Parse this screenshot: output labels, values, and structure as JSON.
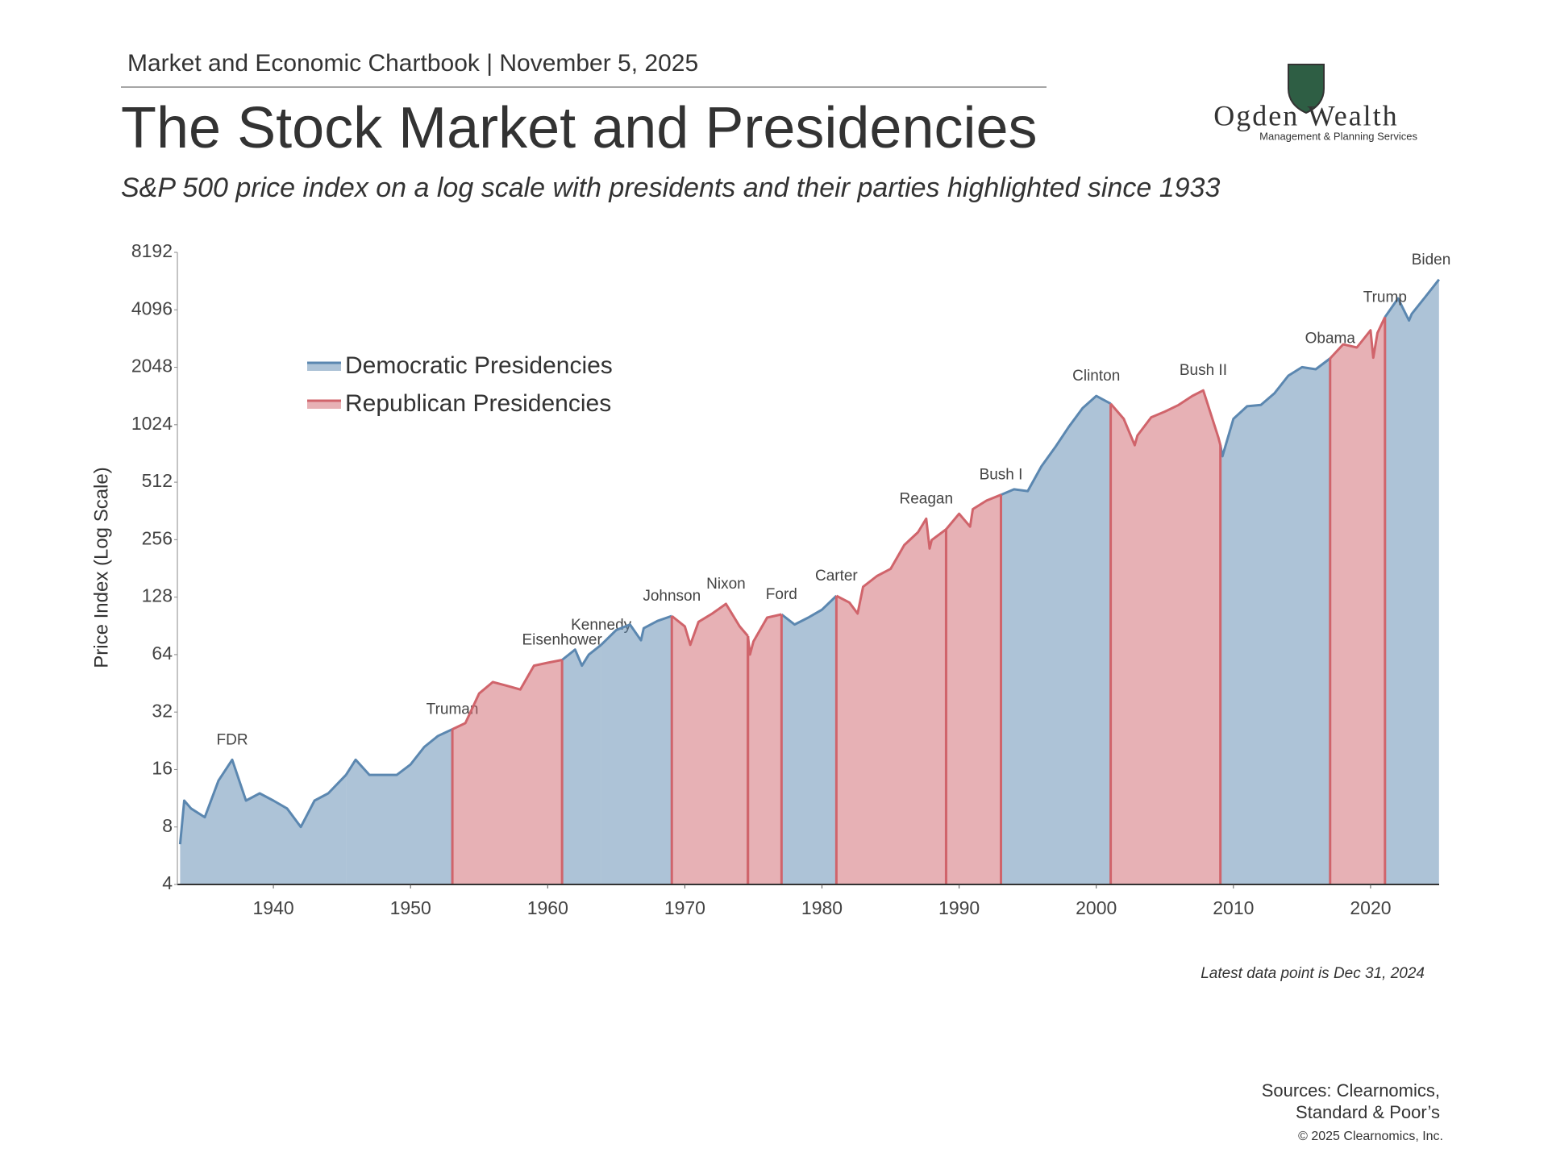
{
  "header": {
    "chartbook": "Market and Economic Chartbook | November 5, 2025",
    "title": "The Stock Market and Presidencies",
    "subtitle": "S&P 500 price index on a log scale with presidents and their parties highlighted since 1933"
  },
  "logo": {
    "name": "Ogden Wealth",
    "tagline": "Management & Planning Services"
  },
  "chart_data": {
    "type": "area",
    "ylabel": "Price Index (Log Scale)",
    "annotation": "Latest data point is Dec 31, 2024",
    "log_scale": true,
    "xlim": [
      1933,
      2025
    ],
    "xticks": [
      1940,
      1950,
      1960,
      1970,
      1980,
      1990,
      2000,
      2010,
      2020
    ],
    "ylim": [
      4,
      8192
    ],
    "yticks": [
      4,
      8,
      16,
      32,
      64,
      128,
      256,
      512,
      1024,
      2048,
      4096,
      8192
    ],
    "legend": "upper left",
    "series": [
      {
        "name": "Democratic Presidencies",
        "color": "#5b87b0",
        "segments": [
          {
            "label": "FDR",
            "x": [
              1933.2,
              1933.5,
              1934,
              1935,
              1936,
              1937,
              1938,
              1939,
              1940,
              1941,
              1942,
              1943,
              1944,
              1945.3
            ],
            "values": [
              6.5,
              11,
              10,
              9,
              14,
              18,
              11,
              12,
              11,
              10,
              8,
              11,
              12,
              15
            ]
          },
          {
            "label": "Truman",
            "x": [
              1945.3,
              1946,
              1947,
              1948,
              1949,
              1950,
              1951,
              1952,
              1953.05
            ],
            "values": [
              15,
              18,
              15,
              15,
              15,
              17,
              21,
              24,
              26
            ]
          },
          {
            "label": "Kennedy",
            "x": [
              1961.05,
              1962,
              1962.5,
              1963,
              1963.9
            ],
            "values": [
              60,
              68,
              56,
              64,
              72
            ]
          },
          {
            "label": "Johnson",
            "x": [
              1963.9,
              1965,
              1966,
              1966.8,
              1967,
              1968,
              1969.05
            ],
            "values": [
              72,
              86,
              92,
              76,
              88,
              96,
              102
            ]
          },
          {
            "label": "Carter",
            "x": [
              1977.05,
              1978,
              1979,
              1980,
              1981.05
            ],
            "values": [
              104,
              92,
              100,
              110,
              130
            ]
          },
          {
            "label": "Clinton",
            "x": [
              1993.05,
              1994,
              1995,
              1996,
              1997,
              1998,
              1999,
              2000,
              2001.05
            ],
            "values": [
              440,
              470,
              460,
              620,
              780,
              1000,
              1250,
              1450,
              1320
            ]
          },
          {
            "label": "Obama",
            "x": [
              2009.05,
              2009.2,
              2010,
              2011,
              2012,
              2013,
              2014,
              2015,
              2016,
              2017.05
            ],
            "values": [
              800,
              700,
              1100,
              1280,
              1300,
              1500,
              1850,
              2050,
              2000,
              2280
            ]
          },
          {
            "label": "Biden",
            "x": [
              2021.05,
              2022,
              2022.8,
              2023,
              2024,
              2024.99
            ],
            "values": [
              3750,
              4700,
              3600,
              3900,
              4800,
              5900
            ]
          }
        ]
      },
      {
        "name": "Republican Presidencies",
        "color": "#d0646b",
        "segments": [
          {
            "label": "Eisenhower",
            "x": [
              1953.05,
              1954,
              1955,
              1956,
              1957,
              1958,
              1959,
              1960,
              1961.05
            ],
            "values": [
              26,
              28,
              40,
              46,
              44,
              42,
              56,
              58,
              60
            ]
          },
          {
            "label": "Nixon",
            "x": [
              1969.05,
              1970,
              1970.4,
              1971,
              1972,
              1973,
              1974,
              1974.6
            ],
            "values": [
              102,
              90,
              72,
              95,
              105,
              118,
              90,
              80
            ]
          },
          {
            "label": "Ford",
            "x": [
              1974.6,
              1974.75,
              1975,
              1976,
              1977.05
            ],
            "values": [
              80,
              64,
              75,
              100,
              104
            ]
          },
          {
            "label": "Reagan",
            "x": [
              1981.05,
              1982,
              1982.6,
              1983,
              1984,
              1985,
              1986,
              1987,
              1987.6,
              1987.85,
              1988,
              1989.05
            ],
            "values": [
              130,
              120,
              105,
              145,
              165,
              180,
              240,
              280,
              330,
              230,
              255,
              290
            ]
          },
          {
            "label": "Bush I",
            "x": [
              1989.05,
              1990,
              1990.8,
              1991,
              1992,
              1993.05
            ],
            "values": [
              290,
              350,
              300,
              370,
              410,
              440
            ]
          },
          {
            "label": "Bush II",
            "x": [
              2001.05,
              2002,
              2002.8,
              2003,
              2004,
              2005,
              2006,
              2007,
              2007.8,
              2008,
              2008.9,
              2009.05
            ],
            "values": [
              1320,
              1100,
              800,
              900,
              1120,
              1200,
              1300,
              1450,
              1550,
              1400,
              880,
              800
            ]
          },
          {
            "label": "Trump",
            "x": [
              2017.05,
              2018,
              2019,
              2020,
              2020.2,
              2020.5,
              2021.05
            ],
            "values": [
              2280,
              2700,
              2600,
              3200,
              2300,
              3100,
              3750
            ]
          }
        ]
      }
    ]
  },
  "footer": {
    "sources": [
      "Sources: Clearnomics,",
      "Standard & Poor’s"
    ],
    "copyright": "© 2025 Clearnomics, Inc."
  }
}
